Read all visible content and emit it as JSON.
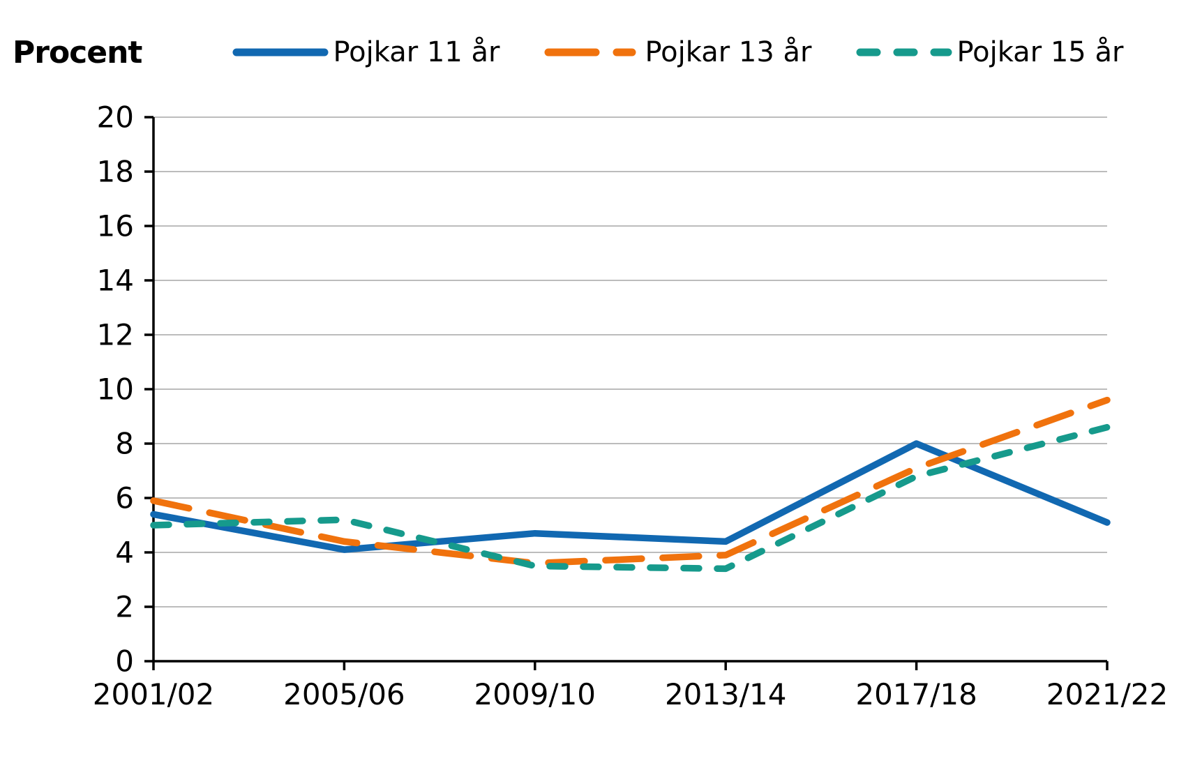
{
  "title": "Procent",
  "chart_data": {
    "type": "line",
    "x_categories": [
      "2001/02",
      "2005/06",
      "2009/10",
      "2013/14",
      "2017/18",
      "2021/22"
    ],
    "xlabel": "",
    "ylabel": "Procent",
    "ylim": [
      0,
      20
    ],
    "ytick_step": 2,
    "grid": "horizontal",
    "legend_position": "top",
    "series": [
      {
        "name": "Pojkar 11 år",
        "values": [
          5.4,
          4.1,
          4.7,
          4.4,
          8.0,
          5.1
        ],
        "color": "#1168b1",
        "dash": "solid"
      },
      {
        "name": "Pojkar 13 år",
        "values": [
          5.9,
          4.4,
          3.6,
          3.9,
          7.1,
          9.6
        ],
        "color": "#f0720d",
        "dash": "long-dash"
      },
      {
        "name": "Pojkar 15 år",
        "values": [
          5.0,
          5.2,
          3.5,
          3.4,
          6.8,
          8.6
        ],
        "color": "#169a8c",
        "dash": "short-dash"
      }
    ]
  },
  "colors": {
    "axis": "#000000",
    "grid": "#a6a6a6",
    "background": "#ffffff",
    "text": "#000000"
  }
}
